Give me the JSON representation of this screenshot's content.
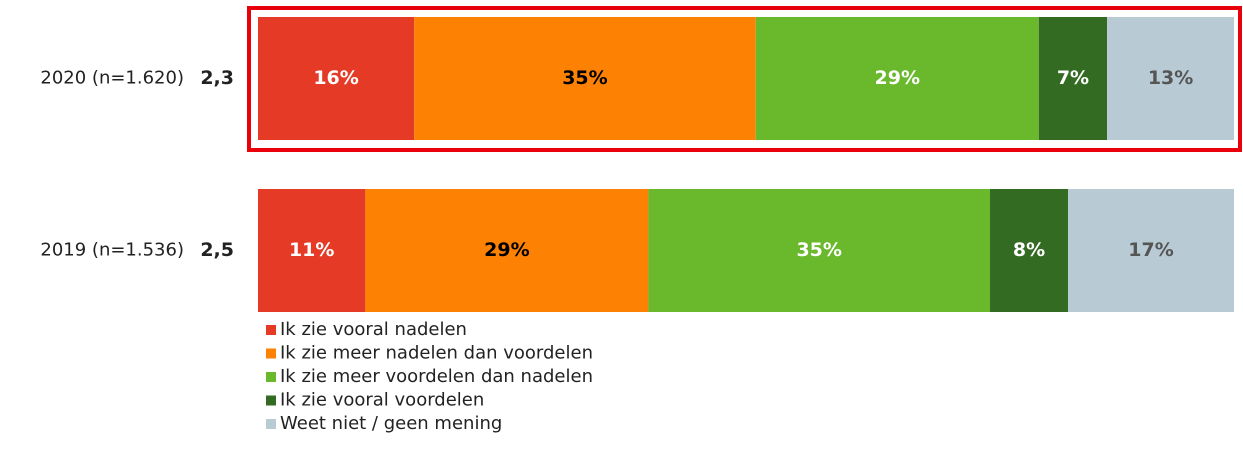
{
  "chart_data": {
    "type": "stacked-bar-horizontal",
    "categories": [
      "2020 (n=1.620)",
      "2019 (n=1.536)"
    ],
    "category_scores": [
      "2,3",
      "2,5"
    ],
    "xlim": [
      0,
      100
    ],
    "series": [
      {
        "name": "Ik zie vooral nadelen",
        "color": "#e43a26",
        "label_color": "#ffffff",
        "values": [
          16,
          11
        ],
        "value_labels": [
          "16%",
          "11%"
        ]
      },
      {
        "name": "Ik zie meer nadelen dan voordelen",
        "color": "#fd8103",
        "label_color": "#000000",
        "values": [
          35,
          29
        ],
        "value_labels": [
          "35%",
          "29%"
        ]
      },
      {
        "name": "Ik zie meer voordelen dan nadelen",
        "color": "#6ab82c",
        "label_color": "#ffffff",
        "values": [
          29,
          35
        ],
        "value_labels": [
          "29%",
          "35%"
        ]
      },
      {
        "name": "Ik zie vooral voordelen",
        "color": "#336b23",
        "label_color": "#ffffff",
        "values": [
          7,
          8
        ],
        "value_labels": [
          "7%",
          "8%"
        ]
      },
      {
        "name": "Weet niet / geen mening",
        "color": "#b8cbd5",
        "label_color": "#555555",
        "values": [
          13,
          17
        ],
        "value_labels": [
          "13%",
          "17%"
        ]
      }
    ]
  }
}
